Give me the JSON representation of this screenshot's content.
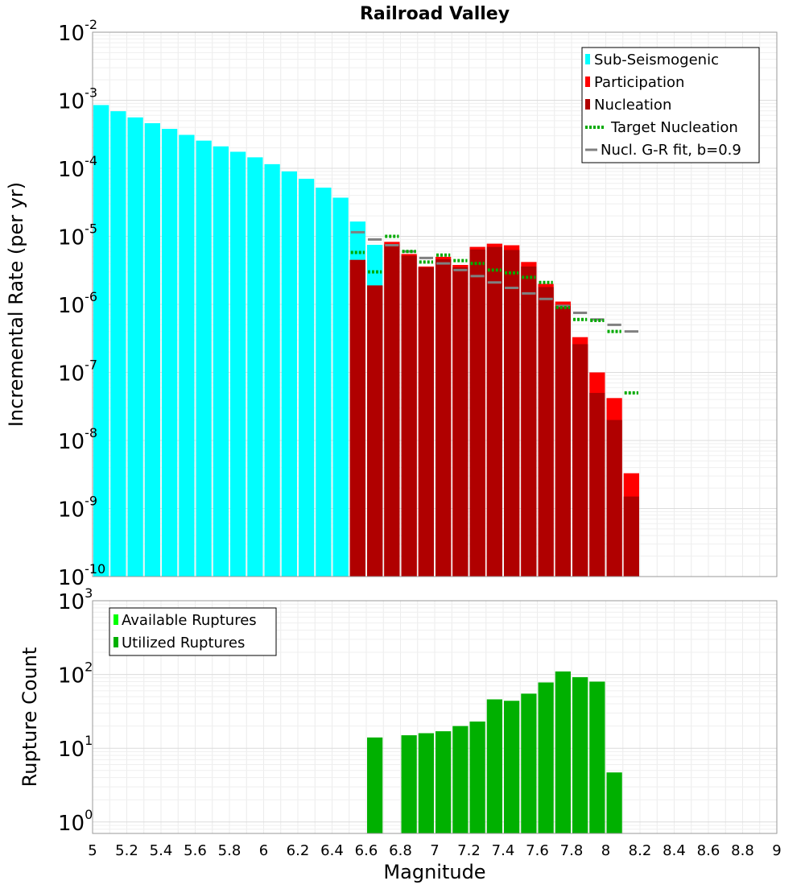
{
  "chart_data": [
    {
      "type": "bar",
      "title": "Railroad Valley",
      "xlabel": "Magnitude",
      "ylabel": "Incremental Rate (per yr)",
      "yscale": "log",
      "xlim": [
        5,
        9
      ],
      "ylim": [
        1e-10,
        0.01
      ],
      "y_tick_labels": [
        {
          "base": "10",
          "exp": "-10"
        },
        {
          "base": "10",
          "exp": "-9"
        },
        {
          "base": "10",
          "exp": "-8"
        },
        {
          "base": "10",
          "exp": "-7"
        },
        {
          "base": "10",
          "exp": "-6"
        },
        {
          "base": "10",
          "exp": "-5"
        },
        {
          "base": "10",
          "exp": "-4"
        },
        {
          "base": "10",
          "exp": "-3"
        },
        {
          "base": "10",
          "exp": "-2"
        }
      ],
      "legend_position": "top-right",
      "legend": [
        {
          "label": "Sub-Seismogenic",
          "color": "#00ffff",
          "style": "bar"
        },
        {
          "label": "Participation",
          "color": "#ff0000",
          "style": "bar"
        },
        {
          "label": "Nucleation",
          "color": "#b00000",
          "style": "bar"
        },
        {
          "label": "Target Nucleation",
          "color": "#00aa00",
          "style": "dotted"
        },
        {
          "label": "Nucl. G-R fit, b=0.9",
          "color": "#808080",
          "style": "line"
        }
      ],
      "bin_width": 0.1,
      "series": [
        {
          "name": "Sub-Seismogenic",
          "color": "#00ffff",
          "x": [
            5.05,
            5.15,
            5.25,
            5.35,
            5.45,
            5.55,
            5.65,
            5.75,
            5.85,
            5.95,
            6.05,
            6.15,
            6.25,
            6.35,
            6.45,
            6.55,
            6.65
          ],
          "values": [
            0.00085,
            0.00069,
            0.00056,
            0.00046,
            0.00038,
            0.00031,
            0.000255,
            0.00021,
            0.000175,
            0.000145,
            0.000115,
            9e-05,
            7e-05,
            5.2e-05,
            3.7e-05,
            1.65e-05,
            7.5e-06
          ]
        },
        {
          "name": "Participation",
          "color": "#ff0000",
          "x": [
            6.55,
            6.65,
            6.75,
            6.85,
            6.95,
            7.05,
            7.15,
            7.25,
            7.35,
            7.45,
            7.55,
            7.65,
            7.75,
            7.85,
            7.95,
            8.05,
            8.15
          ],
          "values": [
            4.5e-06,
            1.9e-06,
            8.3e-06,
            5.5e-06,
            3.6e-06,
            5e-06,
            3.8e-06,
            7e-06,
            7.8e-06,
            7.4e-06,
            4.2e-06,
            2e-06,
            1.1e-06,
            3.3e-07,
            1e-07,
            4.2e-08,
            3.3e-09
          ]
        },
        {
          "name": "Nucleation",
          "color": "#b00000",
          "x": [
            6.55,
            6.65,
            6.75,
            6.85,
            6.95,
            7.05,
            7.15,
            7.25,
            7.35,
            7.45,
            7.55,
            7.65,
            7.75,
            7.85,
            7.95,
            8.05,
            8.15
          ],
          "values": [
            4.5e-06,
            1.9e-06,
            7.6e-06,
            5.2e-06,
            3.5e-06,
            4.6e-06,
            3.5e-06,
            6.4e-06,
            7e-06,
            6.3e-06,
            3.6e-06,
            1.8e-06,
            9.5e-07,
            2.6e-07,
            5e-08,
            2e-08,
            1.5e-09
          ]
        },
        {
          "name": "Target Nucleation",
          "color": "#00aa00",
          "x": [
            6.55,
            6.65,
            6.75,
            6.85,
            6.95,
            7.05,
            7.15,
            7.25,
            7.35,
            7.45,
            7.55,
            7.65,
            7.75,
            7.85,
            7.95,
            8.05,
            8.15
          ],
          "values": [
            5.8e-06,
            3e-06,
            1e-05,
            6e-06,
            4.2e-06,
            5.3e-06,
            4.4e-06,
            4e-06,
            3.2e-06,
            2.9e-06,
            2.5e-06,
            2.1e-06,
            9e-07,
            6e-07,
            5.8e-07,
            4e-07,
            5e-08
          ]
        },
        {
          "name": "Nucl. G-R fit, b=0.9",
          "color": "#808080",
          "x": [
            6.55,
            6.65,
            6.75,
            6.85,
            6.95,
            7.05,
            7.15,
            7.25,
            7.35,
            7.45,
            7.55,
            7.65,
            7.75,
            7.85,
            7.95,
            8.05,
            8.15
          ],
          "values": [
            1.15e-05,
            9e-06,
            7.4e-06,
            6e-06,
            4.8e-06,
            4e-06,
            3.2e-06,
            2.6e-06,
            2.1e-06,
            1.75e-06,
            1.45e-06,
            1.2e-06,
            9.5e-07,
            7.5e-07,
            6e-07,
            5e-07,
            4e-07
          ]
        }
      ]
    },
    {
      "type": "bar",
      "title": "",
      "xlabel": "Magnitude",
      "ylabel": "Rupture Count",
      "yscale": "log",
      "xlim": [
        5,
        9
      ],
      "ylim": [
        0.7,
        1000
      ],
      "y_tick_labels": [
        {
          "base": "10",
          "exp": "0"
        },
        {
          "base": "10",
          "exp": "1"
        },
        {
          "base": "10",
          "exp": "2"
        },
        {
          "base": "10",
          "exp": "3"
        }
      ],
      "x_tick_labels": [
        "5",
        "5.2",
        "5.4",
        "5.6",
        "5.8",
        "6",
        "6.2",
        "6.4",
        "6.6",
        "6.8",
        "7",
        "7.2",
        "7.4",
        "7.6",
        "7.8",
        "8",
        "8.2",
        "8.4",
        "8.6",
        "8.8",
        "9"
      ],
      "legend_position": "top-left",
      "legend": [
        {
          "label": "Available Ruptures",
          "color": "#00ff00",
          "style": "bar"
        },
        {
          "label": "Utilized Ruptures",
          "color": "#00b000",
          "style": "bar"
        }
      ],
      "bin_width": 0.1,
      "series": [
        {
          "name": "Utilized Ruptures",
          "color": "#00b000",
          "x": [
            6.65,
            6.85,
            6.95,
            7.05,
            7.15,
            7.25,
            7.35,
            7.45,
            7.55,
            7.65,
            7.75,
            7.85,
            7.95,
            8.05
          ],
          "values": [
            14,
            15,
            16,
            17,
            20,
            23,
            46,
            44,
            55,
            78,
            110,
            92,
            80,
            4.7
          ]
        }
      ]
    }
  ]
}
